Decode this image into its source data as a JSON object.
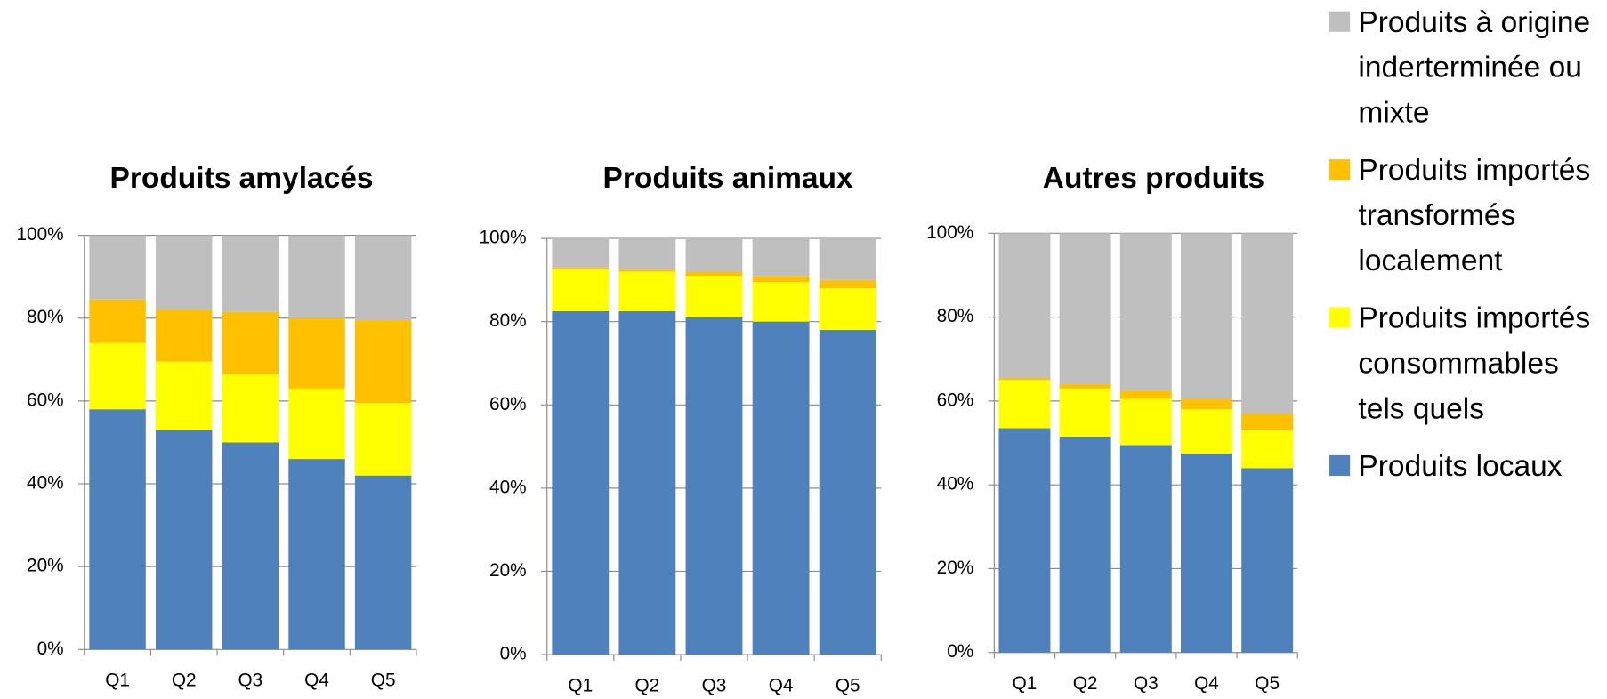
{
  "legend": [
    {
      "name": "Produits à origine inderterminée ou mixte",
      "color": "#bfbfbf"
    },
    {
      "name": "Produits importés transformés localement",
      "color": "#ffc000"
    },
    {
      "name": "Produits importés consommables tels quels",
      "color": "#ffff00"
    },
    {
      "name": "Produits locaux",
      "color": "#4f81bd"
    }
  ],
  "chart_data": [
    {
      "type": "bar",
      "stacked": true,
      "title": "Produits amylacés",
      "categories": [
        "Q1",
        "Q2",
        "Q3",
        "Q4",
        "Q5"
      ],
      "series": [
        {
          "values": [
            58,
            53,
            50,
            46,
            42
          ]
        },
        {
          "values": [
            16,
            16.5,
            16.5,
            17,
            17.5
          ]
        },
        {
          "values": [
            10.5,
            12.5,
            15,
            17,
            20
          ]
        },
        {
          "values": [
            15.5,
            18,
            18.5,
            20,
            20.5
          ]
        }
      ],
      "ylim": [
        0,
        100
      ],
      "yticks": [
        {
          "value": 0,
          "label": "0%"
        },
        {
          "value": 20,
          "label": "20%"
        },
        {
          "value": 40,
          "label": "40%"
        },
        {
          "value": 60,
          "label": "60%"
        },
        {
          "value": 80,
          "label": "80%"
        },
        {
          "value": 100,
          "label": "100%"
        }
      ],
      "grid": true
    },
    {
      "type": "bar",
      "stacked": true,
      "title": "Produits animaux",
      "categories": [
        "Q1",
        "Q2",
        "Q3",
        "Q4",
        "Q5"
      ],
      "series": [
        {
          "values": [
            82.5,
            82.5,
            81,
            80,
            78
          ]
        },
        {
          "values": [
            10,
            9.5,
            10,
            9.5,
            10
          ]
        },
        {
          "values": [
            0.5,
            0.5,
            1,
            1.5,
            2
          ]
        },
        {
          "values": [
            7,
            7.5,
            8,
            9,
            10
          ]
        }
      ],
      "ylim": [
        0,
        100
      ],
      "yticks": [
        {
          "value": 0,
          "label": "0%"
        },
        {
          "value": 20,
          "label": "20%"
        },
        {
          "value": 40,
          "label": "40%"
        },
        {
          "value": 60,
          "label": "60%"
        },
        {
          "value": 80,
          "label": "80%"
        },
        {
          "value": 100,
          "label": "100%"
        }
      ],
      "grid": true
    },
    {
      "type": "bar",
      "stacked": true,
      "title": "Autres produits",
      "categories": [
        "Q1",
        "Q2",
        "Q3",
        "Q4",
        "Q5"
      ],
      "series": [
        {
          "values": [
            53.5,
            51.5,
            49.5,
            47.5,
            44
          ]
        },
        {
          "values": [
            11.5,
            11.5,
            11,
            10.5,
            9
          ]
        },
        {
          "values": [
            0.5,
            1,
            2,
            2.5,
            4
          ]
        },
        {
          "values": [
            34.5,
            36,
            37.5,
            39.5,
            43
          ]
        }
      ],
      "ylim": [
        0,
        100
      ],
      "yticks": [
        {
          "value": 0,
          "label": "0%"
        },
        {
          "value": 20,
          "label": "20%"
        },
        {
          "value": 40,
          "label": "40%"
        },
        {
          "value": 60,
          "label": "60%"
        },
        {
          "value": 80,
          "label": "80%"
        },
        {
          "value": 100,
          "label": "100%"
        }
      ],
      "grid": true
    }
  ]
}
